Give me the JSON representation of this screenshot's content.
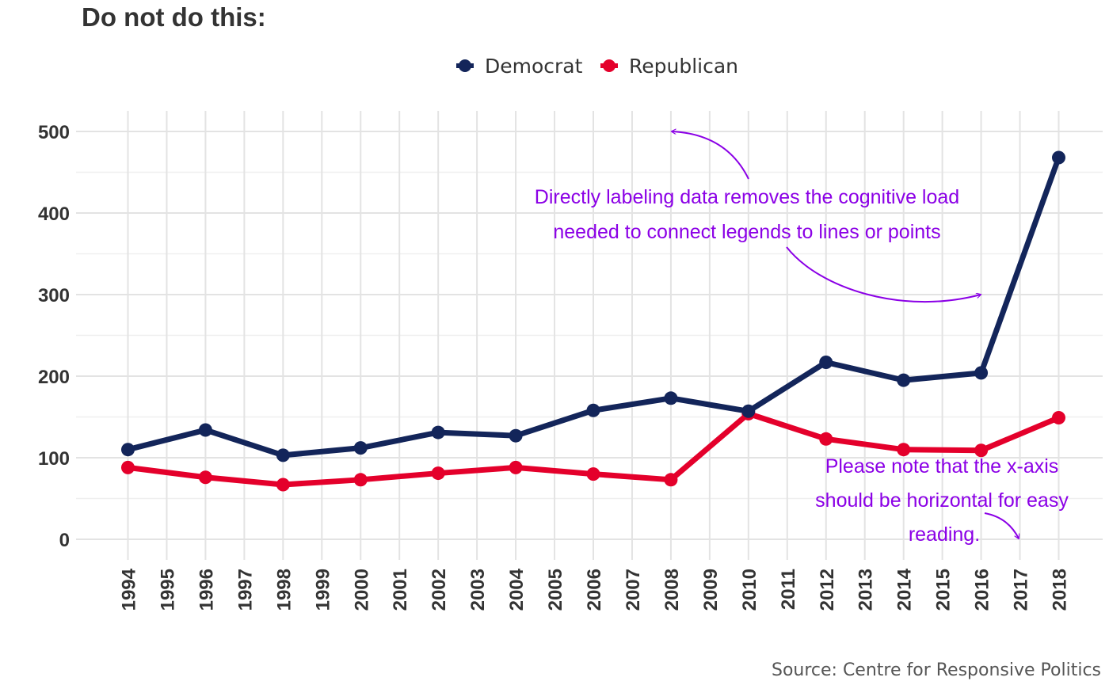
{
  "chart_data": {
    "type": "line",
    "title": "Do not do this:",
    "caption": "Source: Centre for Responsive Politics",
    "x": [
      "1994",
      "1995",
      "1996",
      "1997",
      "1998",
      "1999",
      "2000",
      "2001",
      "2002",
      "2003",
      "2004",
      "2005",
      "2006",
      "2007",
      "2008",
      "2009",
      "2010",
      "2011",
      "2012",
      "2013",
      "2014",
      "2015",
      "2016",
      "2017",
      "2018"
    ],
    "xlabel": "",
    "ylabel": "",
    "ylim": [
      0,
      500
    ],
    "yticks": [
      "0",
      "100",
      "200",
      "300",
      "400",
      "500"
    ],
    "grid": true,
    "legend_position": "top",
    "series": [
      {
        "name": "Democrat",
        "color": "#13255a",
        "points": [
          {
            "x": "1994",
            "y": 110
          },
          {
            "x": "1996",
            "y": 134
          },
          {
            "x": "1998",
            "y": 103
          },
          {
            "x": "2000",
            "y": 112
          },
          {
            "x": "2002",
            "y": 131
          },
          {
            "x": "2004",
            "y": 127
          },
          {
            "x": "2006",
            "y": 158
          },
          {
            "x": "2008",
            "y": 173
          },
          {
            "x": "2010",
            "y": 157
          },
          {
            "x": "2012",
            "y": 217
          },
          {
            "x": "2014",
            "y": 195
          },
          {
            "x": "2016",
            "y": 204
          },
          {
            "x": "2018",
            "y": 468
          }
        ]
      },
      {
        "name": "Republican",
        "color": "#e4002b",
        "points": [
          {
            "x": "1994",
            "y": 88
          },
          {
            "x": "1996",
            "y": 76
          },
          {
            "x": "1998",
            "y": 67
          },
          {
            "x": "2000",
            "y": 73
          },
          {
            "x": "2002",
            "y": 81
          },
          {
            "x": "2004",
            "y": 88
          },
          {
            "x": "2006",
            "y": 80
          },
          {
            "x": "2008",
            "y": 73
          },
          {
            "x": "2010",
            "y": 154
          },
          {
            "x": "2012",
            "y": 123
          },
          {
            "x": "2014",
            "y": 110
          },
          {
            "x": "2016",
            "y": 109
          },
          {
            "x": "2018",
            "y": 149
          }
        ]
      }
    ],
    "annotations": [
      {
        "lines": [
          "Directly labeling data removes the cognitive load",
          "needed to connect legends to lines or points"
        ],
        "color": "#8b00e6"
      },
      {
        "lines": [
          "Please note that the x-axis",
          "should be horizontal for easy",
          "reading."
        ],
        "color": "#8b00e6"
      }
    ]
  }
}
